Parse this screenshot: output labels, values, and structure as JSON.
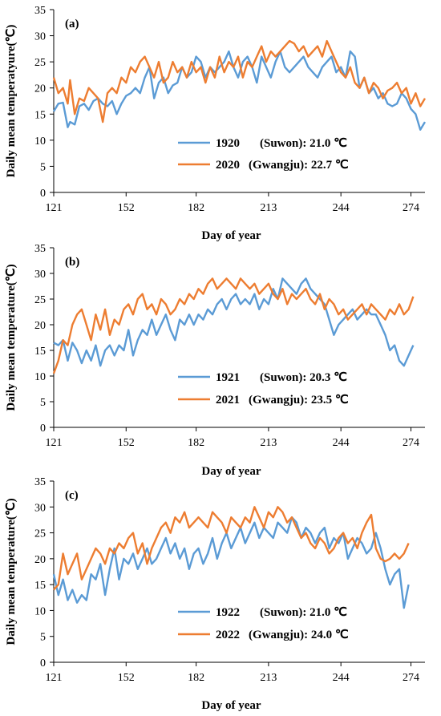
{
  "chart_data": [
    {
      "type": "line",
      "panel": "(a)",
      "xlabel": "Day of year",
      "ylabel": "Daily mean temperatyure(℃)",
      "ylim": [
        0,
        35
      ],
      "xlim": [
        121,
        280
      ],
      "xticks": [
        121,
        152,
        182,
        213,
        244,
        274
      ],
      "yticks": [
        0,
        5,
        10,
        15,
        20,
        25,
        30,
        35
      ],
      "legend_position": "lower-center",
      "series": [
        {
          "name": "1920 (Suwon): 21.0 ℃",
          "legend_year": "1920",
          "legend_rest": "(Suwon): 21.0 ℃",
          "color": "#5b9bd5",
          "x": [
            121,
            123,
            125,
            127,
            128,
            130,
            132,
            134,
            136,
            138,
            140,
            142,
            144,
            146,
            148,
            150,
            152,
            154,
            156,
            158,
            160,
            162,
            164,
            166,
            168,
            170,
            172,
            174,
            176,
            178,
            180,
            182,
            184,
            186,
            188,
            190,
            192,
            194,
            196,
            198,
            200,
            202,
            204,
            206,
            208,
            210,
            212,
            214,
            216,
            218,
            220,
            222,
            224,
            226,
            228,
            230,
            232,
            234,
            236,
            238,
            240,
            242,
            244,
            246,
            248,
            250,
            252,
            254,
            256,
            258,
            260,
            262,
            264,
            266,
            268,
            270,
            272,
            274,
            276,
            278,
            280
          ],
          "y": [
            15.5,
            17,
            17.2,
            12.5,
            13.5,
            13,
            16.5,
            17,
            15.8,
            17.5,
            18,
            17,
            16.5,
            17.5,
            15,
            17,
            18.5,
            19,
            20,
            19,
            22,
            24,
            18,
            21,
            22,
            19,
            20.5,
            21,
            24,
            22,
            23,
            26,
            25,
            22,
            24,
            23,
            24,
            25,
            27,
            24,
            22,
            25,
            26,
            24,
            21,
            26,
            24,
            22,
            25,
            27,
            24,
            23,
            24,
            25,
            26,
            24,
            23,
            22,
            24,
            25,
            26,
            23,
            24,
            22,
            27,
            26,
            20,
            22,
            19,
            20,
            18,
            19,
            17,
            16.5,
            17,
            19,
            18,
            16,
            15,
            12,
            13.5
          ]
        },
        {
          "name": "2020 (Gwangju): 22.7 ℃",
          "legend_year": "2020",
          "legend_rest": "(Gwangju): 22.7 ℃",
          "color": "#ed7d31",
          "x": [
            121,
            123,
            125,
            127,
            128,
            130,
            132,
            134,
            136,
            138,
            140,
            142,
            144,
            146,
            148,
            150,
            152,
            154,
            156,
            158,
            160,
            162,
            164,
            166,
            168,
            170,
            172,
            174,
            176,
            178,
            180,
            182,
            184,
            186,
            188,
            190,
            192,
            194,
            196,
            198,
            200,
            202,
            204,
            206,
            208,
            210,
            212,
            214,
            216,
            218,
            220,
            222,
            224,
            226,
            228,
            230,
            232,
            234,
            236,
            238,
            240,
            242,
            244,
            246,
            248,
            250,
            252,
            254,
            256,
            258,
            260,
            262,
            264,
            266,
            268,
            270,
            272,
            274,
            276,
            278,
            280
          ],
          "y": [
            22,
            19,
            20,
            17,
            21.5,
            15,
            18,
            17.5,
            20,
            19,
            18,
            13.5,
            19,
            20,
            19,
            22,
            21,
            24,
            23,
            25,
            26,
            24,
            22,
            25,
            21,
            22,
            25,
            23,
            24,
            22,
            25,
            23,
            24,
            21,
            24,
            22,
            26,
            23,
            25,
            24,
            26,
            22,
            25,
            24,
            26,
            28,
            25,
            27,
            26,
            27,
            28,
            29,
            28.5,
            27,
            28,
            26,
            27,
            28,
            26,
            29,
            27,
            25,
            23,
            22,
            24,
            21,
            20,
            22,
            19,
            21,
            20,
            18,
            19.5,
            20,
            21,
            19,
            20,
            17,
            19,
            16.5,
            18
          ]
        }
      ]
    },
    {
      "type": "line",
      "panel": "(b)",
      "xlabel": "Day of year",
      "ylabel": "Daily mean temperature(℃)",
      "ylim": [
        0,
        35
      ],
      "xlim": [
        121,
        280
      ],
      "xticks": [
        121,
        152,
        182,
        213,
        244,
        274
      ],
      "yticks": [
        0,
        5,
        10,
        15,
        20,
        25,
        30,
        35
      ],
      "legend_position": "lower-right",
      "series": [
        {
          "name": "1921 (Suwon): 20.3 ℃",
          "legend_year": "1921",
          "legend_rest": "(Suwon): 20.3 ℃",
          "color": "#5b9bd5",
          "x": [
            121,
            123,
            125,
            127,
            129,
            131,
            133,
            135,
            137,
            139,
            141,
            143,
            145,
            147,
            149,
            151,
            153,
            155,
            157,
            159,
            161,
            163,
            165,
            167,
            169,
            171,
            173,
            175,
            177,
            179,
            181,
            183,
            185,
            187,
            189,
            191,
            193,
            195,
            197,
            199,
            201,
            203,
            205,
            207,
            209,
            211,
            213,
            215,
            217,
            219,
            221,
            223,
            225,
            227,
            229,
            231,
            233,
            235,
            237,
            239,
            241,
            243,
            245,
            247,
            249,
            251,
            253,
            255,
            257,
            259,
            261,
            263,
            265,
            267,
            269,
            271,
            273,
            275
          ],
          "y": [
            16.5,
            16,
            17,
            13,
            16.5,
            15,
            12.5,
            15,
            13,
            16,
            12,
            15,
            16,
            14,
            16,
            15,
            19,
            14,
            17,
            19,
            18,
            21,
            18,
            20,
            22,
            19,
            17,
            21,
            20,
            22,
            20,
            22,
            21,
            23,
            22,
            24,
            25,
            23,
            25,
            26,
            24,
            25,
            24,
            26,
            23,
            25,
            24,
            27,
            25,
            29,
            28,
            27,
            26,
            28,
            29,
            27,
            26,
            25,
            24,
            21,
            18,
            20,
            21,
            22,
            23,
            21,
            22,
            23,
            22,
            22,
            20,
            18,
            15,
            16,
            13,
            12,
            14,
            16
          ]
        },
        {
          "name": "2021 (Gwangju): 23.5 ℃",
          "legend_year": "2021",
          "legend_rest": "(Gwangju): 23.5 ℃",
          "color": "#ed7d31",
          "x": [
            121,
            123,
            125,
            127,
            129,
            131,
            133,
            135,
            137,
            139,
            141,
            143,
            145,
            147,
            149,
            151,
            153,
            155,
            157,
            159,
            161,
            163,
            165,
            167,
            169,
            171,
            173,
            175,
            177,
            179,
            181,
            183,
            185,
            187,
            189,
            191,
            193,
            195,
            197,
            199,
            201,
            203,
            205,
            207,
            209,
            211,
            213,
            215,
            217,
            219,
            221,
            223,
            225,
            227,
            229,
            231,
            233,
            235,
            237,
            239,
            241,
            243,
            245,
            247,
            249,
            251,
            253,
            255,
            257,
            259,
            261,
            263,
            265,
            267,
            269,
            271,
            273,
            275
          ],
          "y": [
            10.5,
            13,
            17,
            16,
            20,
            22,
            23,
            20,
            17,
            22,
            19,
            23,
            18,
            21,
            20,
            23,
            24,
            22,
            25,
            26,
            23,
            24,
            22,
            25,
            24,
            22,
            23,
            25,
            24,
            26,
            25,
            27,
            26,
            28,
            29,
            27,
            28,
            29,
            28,
            27,
            29,
            28,
            27,
            28,
            26,
            27,
            28,
            26,
            25,
            27,
            24,
            26,
            25,
            26,
            27,
            25,
            24,
            26,
            23,
            25,
            24,
            22,
            23,
            21,
            22,
            23,
            24,
            22,
            24,
            23,
            22,
            21,
            23,
            22,
            24,
            22,
            23,
            25.5
          ]
        }
      ]
    },
    {
      "type": "line",
      "panel": "(c)",
      "xlabel": "Day of year",
      "ylabel": "Daily mean temperature(℃)",
      "ylim": [
        0,
        35
      ],
      "xlim": [
        121,
        280
      ],
      "xticks": [
        121,
        152,
        182,
        213,
        244,
        274
      ],
      "yticks": [
        0,
        5,
        10,
        15,
        20,
        25,
        30,
        35
      ],
      "legend_position": "lower-right",
      "series": [
        {
          "name": "1922 (Suwon): 21.0 ℃",
          "legend_year": "1922",
          "legend_rest": "(Suwon): 21.0 ℃",
          "color": "#5b9bd5",
          "x": [
            121,
            123,
            125,
            127,
            129,
            131,
            133,
            135,
            137,
            139,
            141,
            143,
            145,
            147,
            149,
            151,
            153,
            155,
            157,
            159,
            161,
            163,
            165,
            167,
            169,
            171,
            173,
            175,
            177,
            179,
            181,
            183,
            185,
            187,
            189,
            191,
            193,
            195,
            197,
            199,
            201,
            203,
            205,
            207,
            209,
            211,
            213,
            215,
            217,
            219,
            221,
            223,
            225,
            227,
            229,
            231,
            233,
            235,
            237,
            239,
            241,
            243,
            245,
            247,
            249,
            251,
            253,
            255,
            257,
            259,
            261,
            263,
            265,
            267,
            269,
            271,
            273
          ],
          "y": [
            17,
            13,
            16,
            12,
            14,
            11.5,
            13,
            12,
            17,
            16,
            19,
            13,
            18,
            22,
            16,
            20,
            19,
            21,
            18,
            20,
            22,
            19,
            20,
            22,
            24,
            21,
            23,
            20,
            22,
            18,
            21,
            22,
            19,
            21,
            24,
            20,
            23,
            25,
            22,
            24,
            26,
            23,
            25,
            27,
            24,
            26,
            25,
            24,
            27,
            26,
            25,
            28,
            27,
            24,
            26,
            25,
            23,
            25,
            26,
            22,
            24,
            23,
            25,
            20,
            22,
            24,
            23,
            21,
            22,
            25,
            22,
            18,
            15,
            17,
            18,
            10.5,
            15
          ]
        },
        {
          "name": "2022 (Gwangju): 24.0 ℃",
          "legend_year": "2022",
          "legend_rest": "(Gwangju): 24.0 ℃",
          "color": "#ed7d31",
          "x": [
            121,
            123,
            125,
            127,
            129,
            131,
            133,
            135,
            137,
            139,
            141,
            143,
            145,
            147,
            149,
            151,
            153,
            155,
            157,
            159,
            161,
            163,
            165,
            167,
            169,
            171,
            173,
            175,
            177,
            179,
            181,
            183,
            185,
            187,
            189,
            191,
            193,
            195,
            197,
            199,
            201,
            203,
            205,
            207,
            209,
            211,
            213,
            215,
            217,
            219,
            221,
            223,
            225,
            227,
            229,
            231,
            233,
            235,
            237,
            239,
            241,
            243,
            245,
            247,
            249,
            251,
            253,
            255,
            257,
            259,
            261,
            263,
            265,
            267,
            269,
            271,
            273
          ],
          "y": [
            14,
            15,
            21,
            17,
            19,
            21,
            16,
            18,
            20,
            22,
            21,
            19,
            22,
            21,
            23,
            22,
            24,
            25,
            21,
            23,
            19,
            22,
            24,
            26,
            27,
            25,
            28,
            27,
            29,
            26,
            27,
            28,
            27,
            26,
            29,
            28,
            27,
            25,
            28,
            27,
            26,
            28,
            27,
            30,
            28,
            26,
            29,
            28,
            30,
            29,
            27,
            28,
            26,
            24,
            25,
            23,
            22,
            24,
            23,
            21,
            22,
            24,
            25,
            23,
            24,
            22,
            25,
            27,
            28.5,
            22,
            20,
            19.5,
            20,
            21,
            20,
            21,
            23
          ]
        }
      ]
    }
  ]
}
